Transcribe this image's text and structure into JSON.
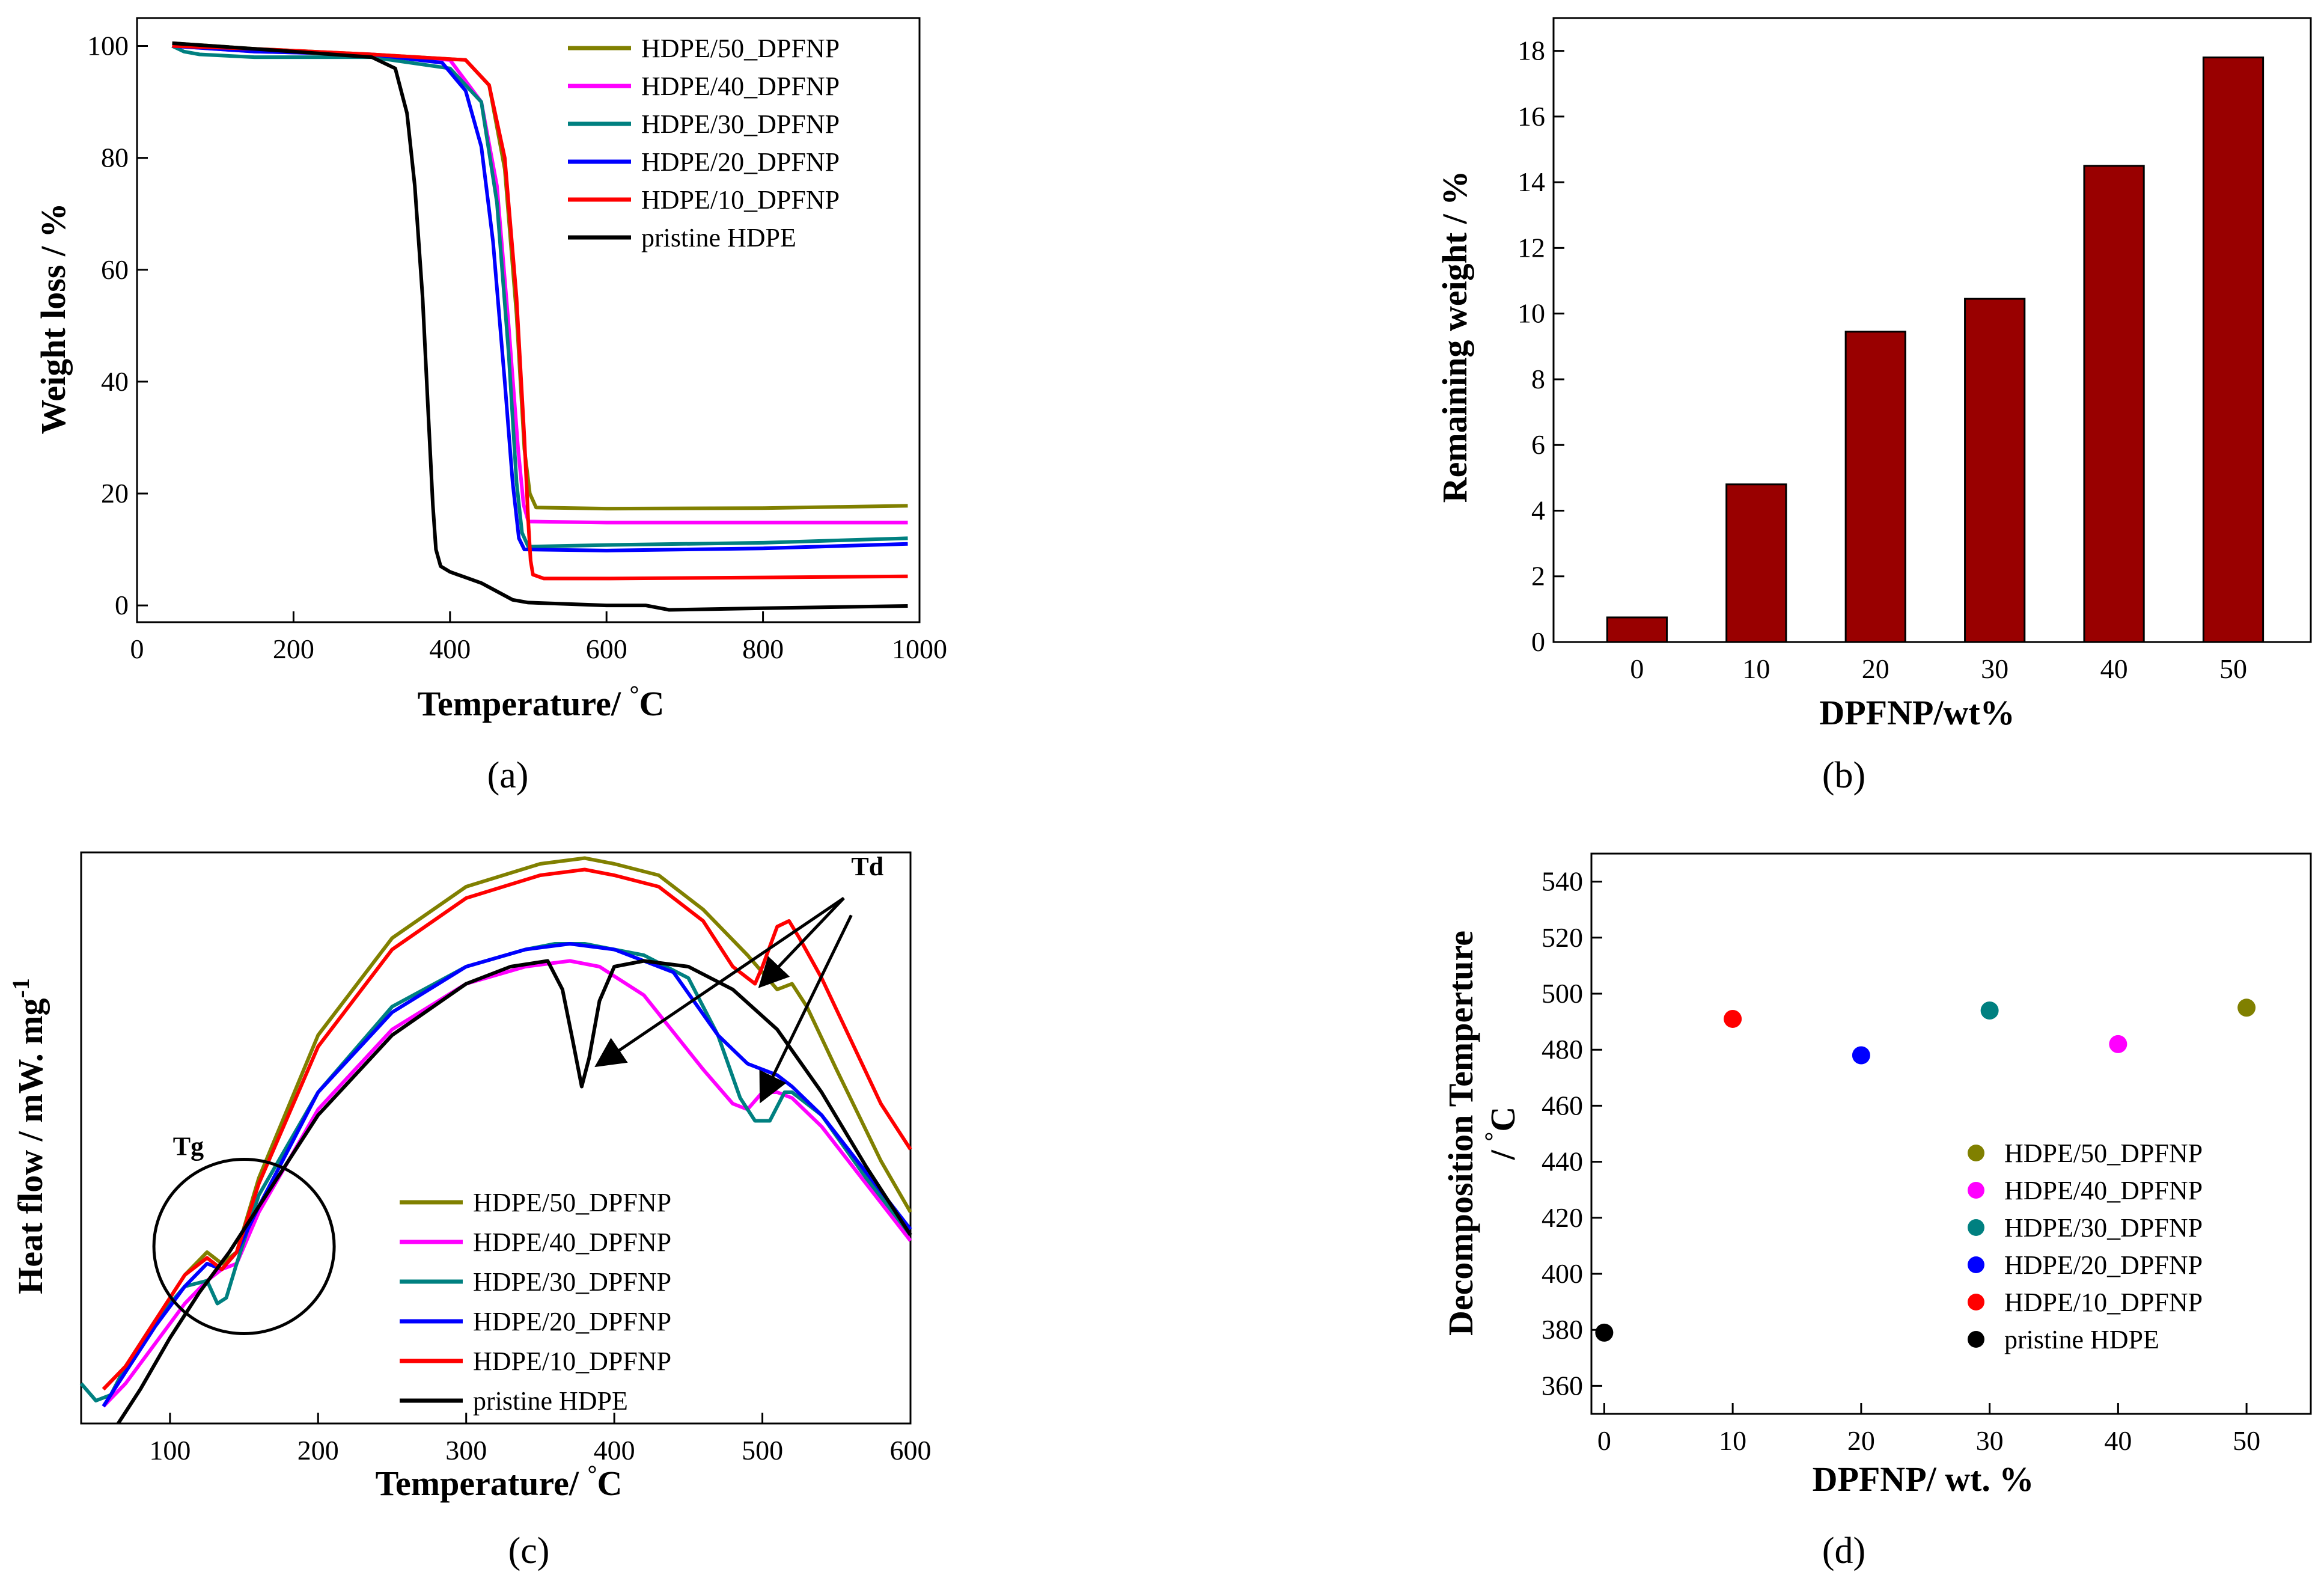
{
  "figure": {
    "panel_labels": [
      "(a)",
      "(b)",
      "(c)",
      "(d)"
    ],
    "colors": {
      "HDPE/50_DPFNP": "#808000",
      "HDPE/40_DPFNP": "#ff00ff",
      "HDPE/30_DPFNP": "#008080",
      "HDPE/20_DPFNP": "#0000ff",
      "HDPE/10_DPFNP": "#ff0000",
      "pristine HDPE": "#000000",
      "bar": "#990000"
    }
  },
  "chart_data": [
    {
      "id": "a",
      "type": "line",
      "title": "",
      "xlabel": "Temperature/ °C",
      "ylabel": "Weight loss / %",
      "xlim": [
        0,
        1000
      ],
      "ylim": [
        -3,
        105
      ],
      "xticks": [
        0,
        200,
        400,
        600,
        800,
        1000
      ],
      "yticks": [
        0,
        20,
        40,
        60,
        80,
        100
      ],
      "legend_position": "top-right",
      "series": [
        {
          "name": "HDPE/50_DPFNP",
          "x": [
            45,
            150,
            300,
            420,
            450,
            470,
            485,
            495,
            502,
            510,
            600,
            800,
            985
          ],
          "y": [
            100.5,
            99.5,
            98.5,
            97.5,
            93,
            78,
            52,
            28,
            20,
            17.5,
            17.3,
            17.4,
            17.8
          ]
        },
        {
          "name": "HDPE/40_DPFNP",
          "x": [
            45,
            150,
            300,
            400,
            440,
            460,
            475,
            487,
            494,
            500,
            600,
            800,
            985
          ],
          "y": [
            100,
            99,
            98.5,
            97.5,
            90,
            75,
            50,
            28,
            18,
            15,
            14.8,
            14.8,
            14.8
          ]
        },
        {
          "name": "HDPE/30_DPFNP",
          "x": [
            45,
            60,
            80,
            150,
            300,
            400,
            440,
            460,
            475,
            485,
            492,
            500,
            600,
            800,
            985
          ],
          "y": [
            100,
            99,
            98.5,
            98,
            98,
            96,
            90,
            72,
            45,
            22,
            13,
            10.5,
            10.8,
            11.2,
            12
          ]
        },
        {
          "name": "HDPE/20_DPFNP",
          "x": [
            45,
            150,
            300,
            390,
            420,
            440,
            455,
            470,
            480,
            488,
            495,
            600,
            800,
            985
          ],
          "y": [
            100,
            99,
            98.5,
            97,
            92,
            82,
            65,
            40,
            22,
            12,
            10,
            9.8,
            10.2,
            11
          ]
        },
        {
          "name": "HDPE/10_DPFNP",
          "x": [
            45,
            150,
            300,
            420,
            450,
            470,
            485,
            495,
            500,
            503,
            506,
            520,
            600,
            800,
            985
          ],
          "y": [
            100,
            99.5,
            98.5,
            97.5,
            93,
            80,
            55,
            30,
            15,
            8,
            5.5,
            4.8,
            4.8,
            5,
            5.2
          ]
        },
        {
          "name": "pristine HDPE",
          "x": [
            45,
            150,
            300,
            330,
            345,
            355,
            365,
            372,
            378,
            382,
            388,
            400,
            420,
            440,
            460,
            480,
            500,
            600,
            650,
            680,
            800,
            985
          ],
          "y": [
            100.5,
            99.5,
            98,
            96,
            88,
            75,
            55,
            35,
            18,
            10,
            7,
            6,
            5,
            4,
            2.5,
            1,
            0.5,
            0,
            0,
            -0.8,
            -0.5,
            -0.1
          ]
        }
      ]
    },
    {
      "id": "b",
      "type": "bar",
      "title": "",
      "xlabel": "DPFNP/wt%",
      "ylabel": "Remaining weight / %",
      "categories": [
        "0",
        "10",
        "20",
        "30",
        "40",
        "50"
      ],
      "values": [
        0.75,
        4.8,
        9.45,
        10.45,
        14.5,
        17.8
      ],
      "ylim": [
        0,
        19
      ],
      "yticks": [
        0,
        2,
        4,
        6,
        8,
        10,
        12,
        14,
        16,
        18
      ]
    },
    {
      "id": "c",
      "type": "line",
      "title": "",
      "xlabel": "Temperature/ °C",
      "ylabel": "Heat flow / mW. mg-1",
      "xlim": [
        40,
        600
      ],
      "ylim": [
        0,
        100
      ],
      "xticks": [
        100,
        200,
        300,
        400,
        500,
        600
      ],
      "yticks": [],
      "legend_position": "bottom-center",
      "annotations": [
        "Td",
        "Tg"
      ],
      "series": [
        {
          "name": "HDPE/50_DPFNP",
          "x": [
            55,
            70,
            90,
            110,
            125,
            135,
            145,
            160,
            200,
            250,
            300,
            350,
            380,
            400,
            430,
            460,
            490,
            510,
            520,
            530,
            550,
            580,
            600
          ],
          "y": [
            6,
            10,
            18,
            26,
            30,
            28,
            30,
            43,
            68,
            85,
            94,
            98,
            99,
            98,
            96,
            90,
            82,
            76,
            77,
            73,
            62,
            46,
            37
          ]
        },
        {
          "name": "HDPE/40_DPFNP",
          "x": [
            55,
            70,
            90,
            110,
            125,
            135,
            145,
            160,
            200,
            250,
            300,
            340,
            370,
            390,
            420,
            460,
            480,
            490,
            500,
            510,
            520,
            540,
            570,
            600
          ],
          "y": [
            3,
            7,
            14,
            21,
            25,
            27,
            28,
            37,
            55,
            69,
            77,
            80,
            81,
            80,
            75,
            62,
            56,
            55,
            58,
            58,
            57,
            52,
            42,
            32
          ]
        },
        {
          "name": "HDPE/30_DPFNP",
          "x": [
            40,
            50,
            60,
            70,
            90,
            110,
            125,
            132,
            138,
            145,
            160,
            200,
            250,
            300,
            340,
            360,
            380,
            400,
            420,
            450,
            470,
            485,
            495,
            505,
            515,
            520,
            540,
            570,
            600
          ],
          "y": [
            7,
            4,
            5,
            10,
            18,
            24,
            25,
            21,
            22,
            28,
            40,
            58,
            73,
            80,
            83,
            84,
            84,
            83,
            82,
            78,
            68,
            57,
            53,
            53,
            58,
            58,
            54,
            43,
            33
          ]
        },
        {
          "name": "HDPE/20_DPFNP",
          "x": [
            55,
            70,
            90,
            110,
            125,
            135,
            145,
            160,
            200,
            250,
            300,
            340,
            370,
            400,
            440,
            470,
            490,
            510,
            520,
            540,
            570,
            600
          ],
          "y": [
            3,
            9,
            17,
            24,
            28,
            27,
            30,
            38,
            58,
            72,
            80,
            83,
            84,
            83,
            79,
            68,
            63,
            61,
            59,
            54,
            44,
            34
          ]
        },
        {
          "name": "HDPE/10_DPFNP",
          "x": [
            55,
            70,
            90,
            110,
            125,
            135,
            145,
            160,
            200,
            250,
            300,
            350,
            380,
            400,
            430,
            460,
            480,
            490,
            495,
            500,
            510,
            518,
            525,
            540,
            560,
            580,
            600
          ],
          "y": [
            6,
            10,
            18,
            26,
            29,
            27,
            30,
            42,
            66,
            83,
            92,
            96,
            97,
            96,
            94,
            88,
            80,
            78,
            77,
            80,
            87,
            88,
            85,
            78,
            67,
            56,
            48
          ]
        },
        {
          "name": "pristine HDPE",
          "x": [
            65,
            80,
            100,
            120,
            140,
            160,
            200,
            250,
            300,
            330,
            355,
            365,
            372,
            378,
            383,
            390,
            400,
            420,
            450,
            480,
            510,
            540,
            570,
            600
          ],
          "y": [
            0,
            6,
            15,
            23,
            30,
            38,
            54,
            68,
            77,
            80,
            81,
            76,
            67,
            59,
            64,
            74,
            80,
            81,
            80,
            76,
            69,
            58,
            45,
            33
          ]
        }
      ]
    },
    {
      "id": "d",
      "type": "scatter",
      "title": "",
      "xlabel": "DPFNP/ wt. %",
      "ylabel": "Decomposition Temperture / °C",
      "xlim": [
        -1,
        55
      ],
      "ylim": [
        350,
        550
      ],
      "xticks": [
        0,
        10,
        20,
        30,
        40,
        50
      ],
      "yticks": [
        360,
        380,
        400,
        420,
        440,
        460,
        480,
        500,
        520,
        540
      ],
      "legend_position": "bottom-right",
      "series": [
        {
          "name": "HDPE/50_DPFNP",
          "x": [
            50
          ],
          "y": [
            495
          ]
        },
        {
          "name": "HDPE/40_DPFNP",
          "x": [
            40
          ],
          "y": [
            482
          ]
        },
        {
          "name": "HDPE/30_DPFNP",
          "x": [
            30
          ],
          "y": [
            494
          ]
        },
        {
          "name": "HDPE/20_DPFNP",
          "x": [
            20
          ],
          "y": [
            478
          ]
        },
        {
          "name": "HDPE/10_DPFNP",
          "x": [
            10
          ],
          "y": [
            491
          ]
        },
        {
          "name": "pristine HDPE",
          "x": [
            0
          ],
          "y": [
            379
          ]
        }
      ]
    }
  ]
}
